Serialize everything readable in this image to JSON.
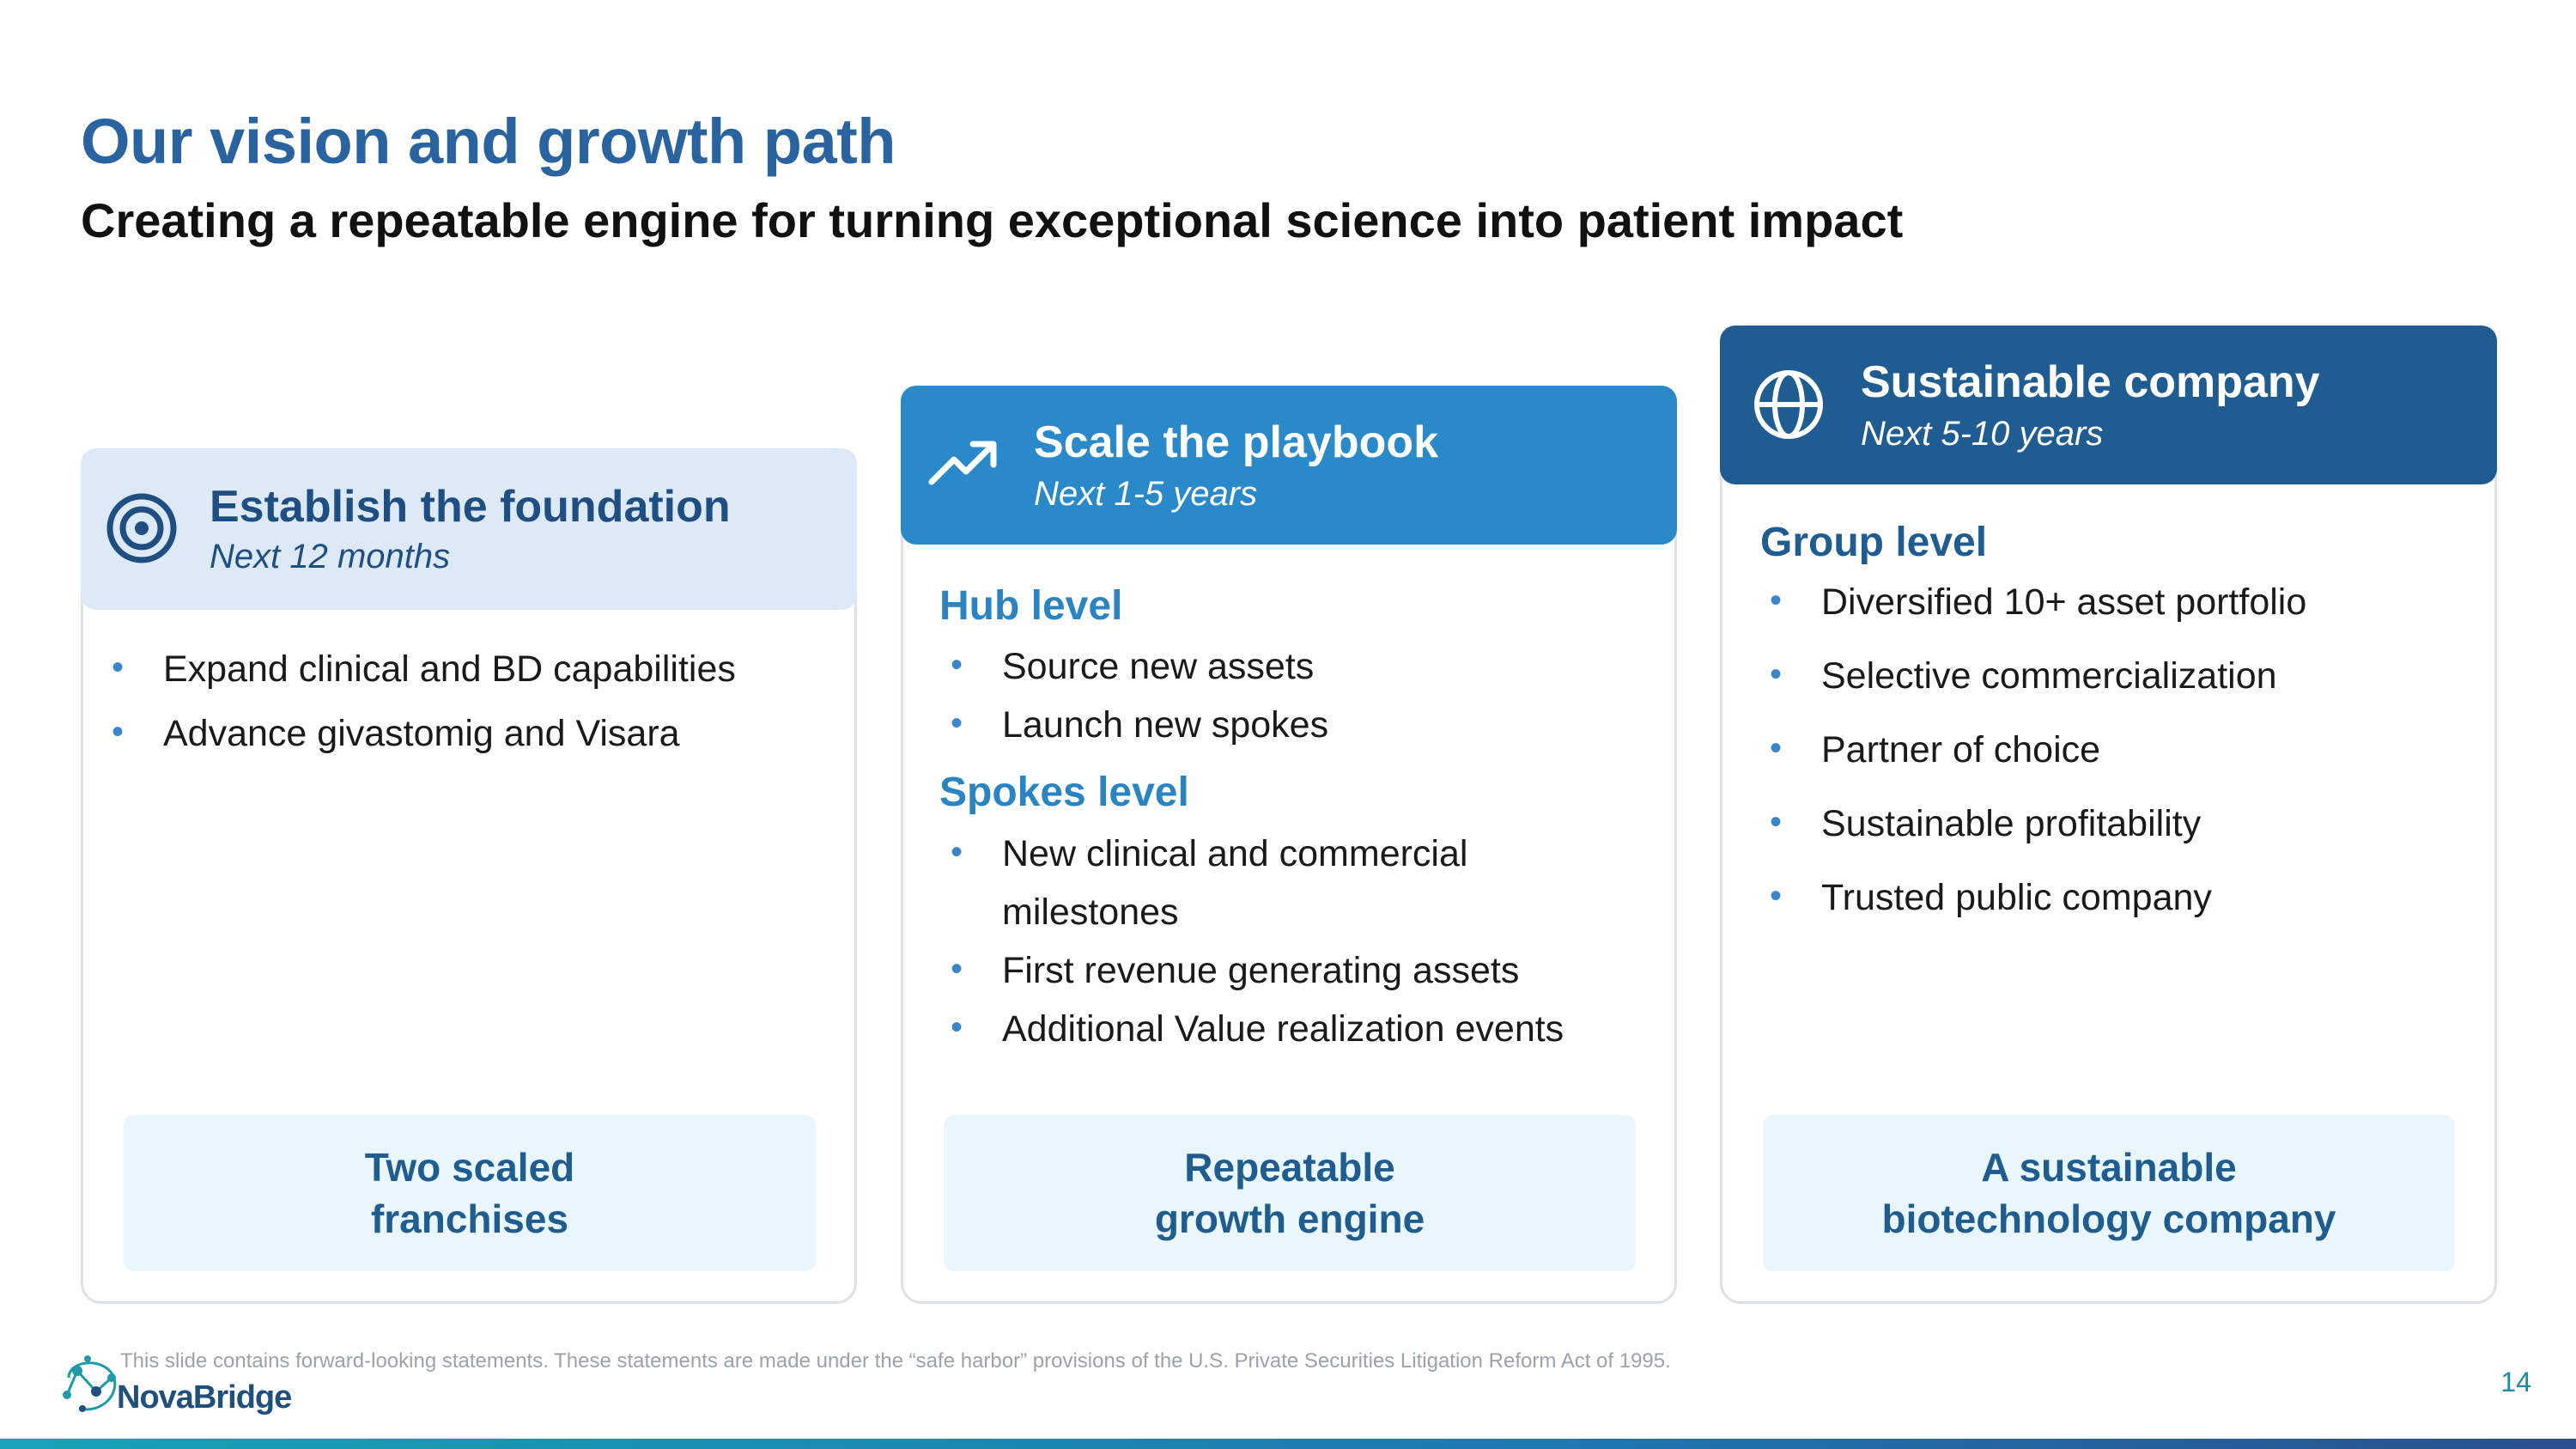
{
  "header": {
    "title": "Our vision and growth path",
    "subtitle": "Creating a repeatable engine for turning exceptional science into patient impact"
  },
  "columns": [
    {
      "title": "Establish the foundation",
      "timeframe": "Next 12 months",
      "icon": "target-icon",
      "header_bg": "#dde9f6",
      "header_text_color": "#1f4f82",
      "bullets": [
        "Expand clinical and BD capabilities",
        "Advance givastomig and Visara"
      ],
      "outcome_line1": "Two scaled",
      "outcome_line2": "franchises"
    },
    {
      "title": "Scale the playbook",
      "timeframe": "Next 1-5 years",
      "icon": "trending-up-icon",
      "header_bg": "#2989c9",
      "header_text_color": "#ffffff",
      "sections": [
        {
          "label": "Hub level",
          "bullets": [
            "Source new assets",
            "Launch new spokes"
          ]
        },
        {
          "label": "Spokes level",
          "bullets": [
            "New clinical and commercial",
            "milestones",
            "First revenue generating assets",
            "Additional Value realization events"
          ]
        }
      ],
      "outcome_line1": "Repeatable",
      "outcome_line2": "growth engine"
    },
    {
      "title": "Sustainable company",
      "timeframe": "Next 5-10 years",
      "icon": "globe-icon",
      "header_bg": "#1f5c92",
      "header_text_color": "#ffffff",
      "sections": [
        {
          "label": "Group level",
          "bullets": [
            "Diversified 10+ asset portfolio",
            "Selective commercialization",
            "Partner of choice",
            "Sustainable profitability",
            "Trusted public company"
          ]
        }
      ],
      "outcome_line1": "A sustainable",
      "outcome_line2": "biotechnology company"
    }
  ],
  "footer": {
    "disclaimer": "This slide contains forward-looking statements. These statements are made under the “safe harbor” provisions of the U.S. Private Securities Litigation Reform Act of 1995.",
    "logo_text": "NovaBridge",
    "page_number": "14"
  },
  "colors": {
    "title": "#2a64a0",
    "level_heading": "#2a84c2",
    "group_heading": "#1f5c92",
    "bullet_dot": "#3a86c8",
    "outcome_bg": "#eaf6fd",
    "outcome_text": "#1f5c8f"
  }
}
